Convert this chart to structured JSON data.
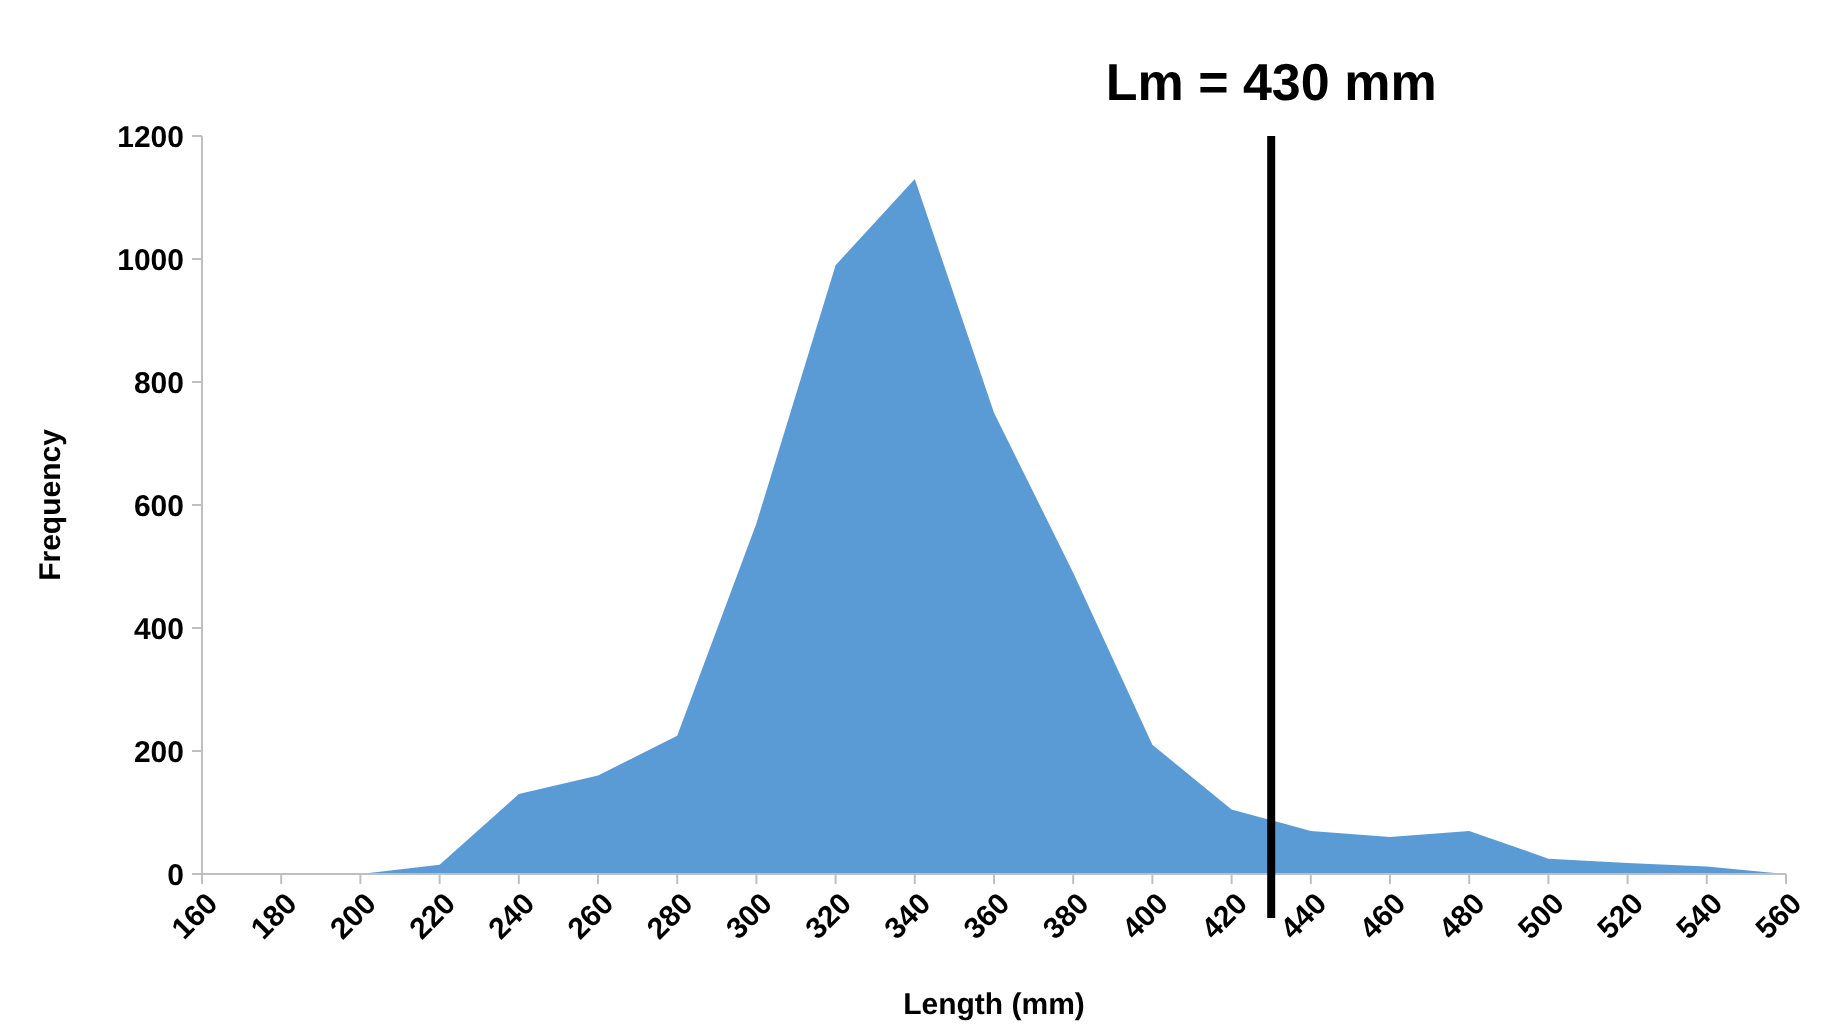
{
  "chart_data": {
    "type": "area",
    "xlabel": "Length (mm)",
    "ylabel": "Frequency",
    "x": [
      160,
      180,
      200,
      220,
      240,
      260,
      280,
      300,
      320,
      340,
      360,
      380,
      400,
      420,
      440,
      460,
      480,
      500,
      520,
      540,
      560
    ],
    "series": [
      {
        "color": "#5b9bd5",
        "values": [
          0,
          0,
          0,
          15,
          130,
          160,
          225,
          570,
          990,
          1130,
          750,
          490,
          210,
          105,
          70,
          60,
          70,
          25,
          18,
          12,
          0
        ]
      }
    ],
    "xlim": [
      160,
      560
    ],
    "xticks": [
      160,
      180,
      200,
      220,
      240,
      260,
      280,
      300,
      320,
      340,
      360,
      380,
      400,
      420,
      440,
      460,
      480,
      500,
      520,
      540,
      560
    ],
    "ylim": [
      0,
      1200
    ],
    "yticks": [
      0,
      200,
      400,
      600,
      800,
      1000,
      1200
    ],
    "grid": false,
    "ref_lines": [
      {
        "axis": "x",
        "value": 430,
        "label": "Lm = 430 mm",
        "color": "#000000"
      }
    ]
  }
}
